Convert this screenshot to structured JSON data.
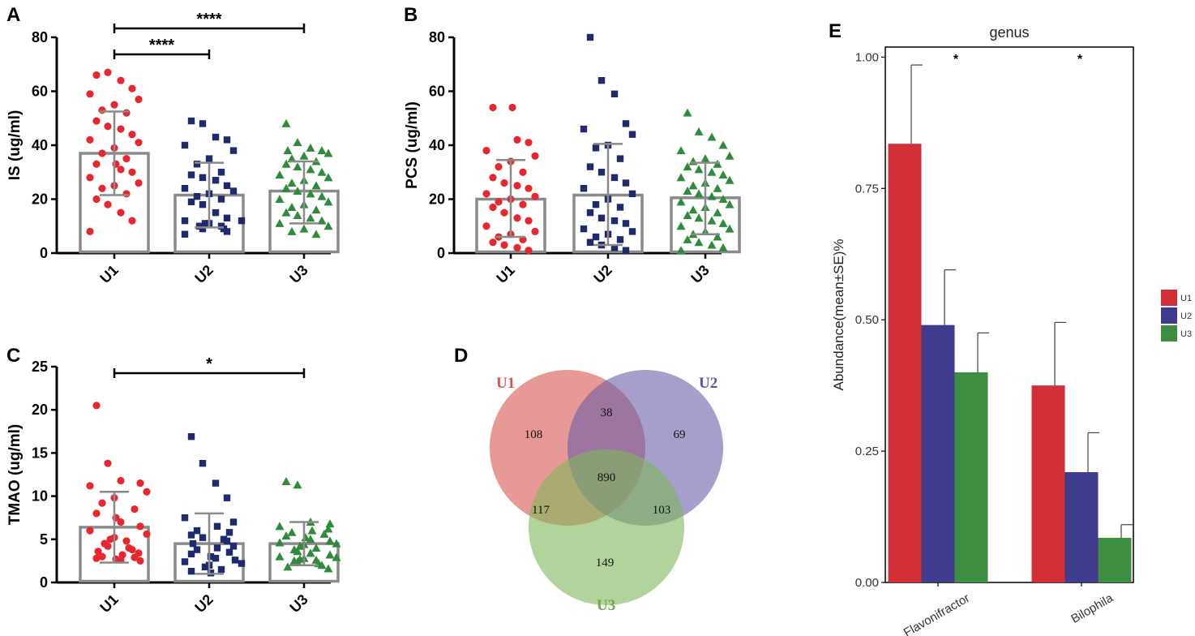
{
  "colors": {
    "U1": "#e8262d",
    "U2": "#1f2a6e",
    "U3": "#2e8b3a",
    "bar": "#8a8a8a"
  },
  "chart_data": [
    {
      "panel": "A",
      "type": "scatter",
      "ylabel": "IS (ug/ml)",
      "ylim": [
        0,
        80
      ],
      "yticks": [
        0,
        20,
        40,
        60,
        80
      ],
      "categories": [
        "U1",
        "U2",
        "U3"
      ],
      "means": [
        37,
        21.5,
        23
      ],
      "sd": [
        [
          21.5,
          52.5
        ],
        [
          9.5,
          33.5
        ],
        [
          11,
          34
        ]
      ],
      "series": [
        {
          "name": "U1",
          "marker": "circle",
          "values": [
            66,
            67,
            64,
            61,
            59,
            57,
            55,
            53,
            52,
            49,
            47,
            46,
            44,
            42,
            41,
            39,
            37,
            35,
            33,
            33,
            31,
            30,
            28,
            26,
            25,
            24,
            22,
            20,
            18,
            15,
            12,
            8
          ]
        },
        {
          "name": "U2",
          "marker": "square",
          "values": [
            49,
            48,
            43,
            42,
            40,
            38,
            35,
            33,
            30,
            29,
            28,
            27,
            25,
            24,
            23,
            22,
            21,
            20,
            19,
            18,
            15,
            13,
            12,
            12,
            11,
            11,
            10,
            10,
            9,
            9,
            8,
            7
          ]
        },
        {
          "name": "U3",
          "marker": "triangle",
          "values": [
            48,
            41,
            39,
            38,
            38,
            37,
            36,
            35,
            34,
            33,
            32,
            31,
            30,
            29,
            28,
            27,
            26,
            25,
            24,
            23,
            22,
            21,
            20,
            19,
            18,
            17,
            16,
            15,
            14,
            13,
            12,
            11,
            10,
            9,
            8,
            7
          ]
        }
      ],
      "significance": [
        {
          "from": "U1",
          "to": "U2",
          "label": "****"
        },
        {
          "from": "U1",
          "to": "U3",
          "label": "****"
        }
      ]
    },
    {
      "panel": "B",
      "type": "scatter",
      "ylabel": "PCS (ug/ml)",
      "ylim": [
        0,
        80
      ],
      "yticks": [
        0,
        20,
        40,
        60,
        80
      ],
      "categories": [
        "U1",
        "U2",
        "U3"
      ],
      "means": [
        20,
        21.5,
        20.5
      ],
      "sd": [
        [
          6,
          34.5
        ],
        [
          3,
          40.5
        ],
        [
          7,
          33.5
        ]
      ],
      "series": [
        {
          "name": "U1",
          "marker": "circle",
          "values": [
            54,
            54,
            42,
            41,
            38,
            36,
            34,
            32,
            30,
            28,
            26,
            25,
            24,
            22,
            21,
            20,
            19,
            18,
            17,
            15,
            13,
            12,
            10,
            8,
            7,
            6,
            5,
            4,
            3,
            2,
            1
          ]
        },
        {
          "name": "U2",
          "marker": "square",
          "values": [
            80,
            64,
            59,
            48,
            46,
            44,
            40,
            39,
            35,
            32,
            30,
            28,
            26,
            24,
            22,
            20,
            18,
            17,
            15,
            13,
            12,
            11,
            9,
            8,
            7,
            6,
            5,
            4,
            3,
            2,
            1
          ]
        },
        {
          "name": "U3",
          "marker": "triangle",
          "values": [
            52,
            45,
            43,
            40,
            38,
            36,
            35,
            34,
            33,
            32,
            31,
            30,
            29,
            28,
            27,
            26,
            25,
            24,
            23,
            22,
            21,
            20,
            19,
            18,
            17,
            16,
            15,
            14,
            13,
            12,
            11,
            10,
            9,
            8,
            7,
            6,
            5,
            4,
            3,
            2,
            1
          ]
        }
      ],
      "significance": []
    },
    {
      "panel": "C",
      "type": "scatter",
      "ylabel": "TMAO (ug/ml)",
      "ylim": [
        0,
        25
      ],
      "yticks": [
        0,
        5,
        10,
        15,
        20,
        25
      ],
      "categories": [
        "U1",
        "U2",
        "U3"
      ],
      "means": [
        6.4,
        4.5,
        4.5
      ],
      "sd": [
        [
          2.3,
          10.5
        ],
        [
          1,
          8
        ],
        [
          2,
          7
        ]
      ],
      "series": [
        {
          "name": "U1",
          "marker": "circle",
          "values": [
            20.5,
            13.8,
            11.8,
            11.5,
            11.2,
            10.5,
            9.8,
            9.2,
            8.5,
            8,
            7.5,
            7,
            6.5,
            6,
            5.6,
            5.2,
            5,
            4.8,
            4.5,
            4.2,
            4,
            3.8,
            3.6,
            3.4,
            3.2,
            3,
            2.9,
            2.8,
            2.7,
            2.6,
            2.5
          ]
        },
        {
          "name": "U2",
          "marker": "square",
          "values": [
            16.9,
            13.8,
            11.5,
            9.8,
            7.5,
            7,
            6.5,
            6,
            5.8,
            5.5,
            5.2,
            5,
            4.8,
            4.5,
            4.2,
            4,
            3.8,
            3.5,
            3.3,
            3,
            2.8,
            2.6,
            2.4,
            2.2,
            2,
            1.8,
            1.5,
            1.3,
            1.1
          ]
        },
        {
          "name": "U3",
          "marker": "triangle",
          "values": [
            11.7,
            11.3,
            7,
            6.8,
            6.5,
            6.2,
            6,
            5.8,
            5.6,
            5.4,
            5.2,
            5,
            4.8,
            4.6,
            4.5,
            4.4,
            4.2,
            4,
            3.8,
            3.6,
            3.4,
            3.2,
            3,
            2.9,
            2.8,
            2.7,
            2.6,
            2.5,
            2.4,
            2.2,
            2,
            1.8,
            1.6
          ]
        }
      ],
      "significance": [
        {
          "from": "U1",
          "to": "U3",
          "label": "*"
        }
      ]
    },
    {
      "panel": "D",
      "type": "venn",
      "sets": [
        {
          "name": "U1",
          "color": "#d9534f"
        },
        {
          "name": "U2",
          "color": "#6a5fa8"
        },
        {
          "name": "U3",
          "color": "#7fb85a"
        }
      ],
      "regions": {
        "U1_only": 108,
        "U2_only": 69,
        "U3_only": 149,
        "U1_U2": 38,
        "U1_U3": 117,
        "U2_U3": 103,
        "U1_U2_U3": 890
      }
    },
    {
      "panel": "E",
      "type": "bar",
      "title": "genus",
      "ylabel": "Abundance(mean±SE)%",
      "ylim": [
        0,
        1.05
      ],
      "yticks": [
        "0.00",
        "0.25",
        "0.50",
        "0.75",
        "1.00"
      ],
      "categories": [
        "Flavonifractor",
        "Bilophila"
      ],
      "series": [
        {
          "name": "U1",
          "color": "#d12e36",
          "values": [
            0.835,
            0.375
          ],
          "se": [
            0.15,
            0.12
          ]
        },
        {
          "name": "U2",
          "color": "#3f3b8d",
          "values": [
            0.49,
            0.21
          ],
          "se": [
            0.105,
            0.075
          ]
        },
        {
          "name": "U3",
          "color": "#3e8e41",
          "values": [
            0.4,
            0.085
          ],
          "se": [
            0.075,
            0.025
          ]
        }
      ],
      "significance": [
        "*",
        "*"
      ],
      "legend": [
        "U1",
        "U2",
        "U3"
      ]
    }
  ]
}
